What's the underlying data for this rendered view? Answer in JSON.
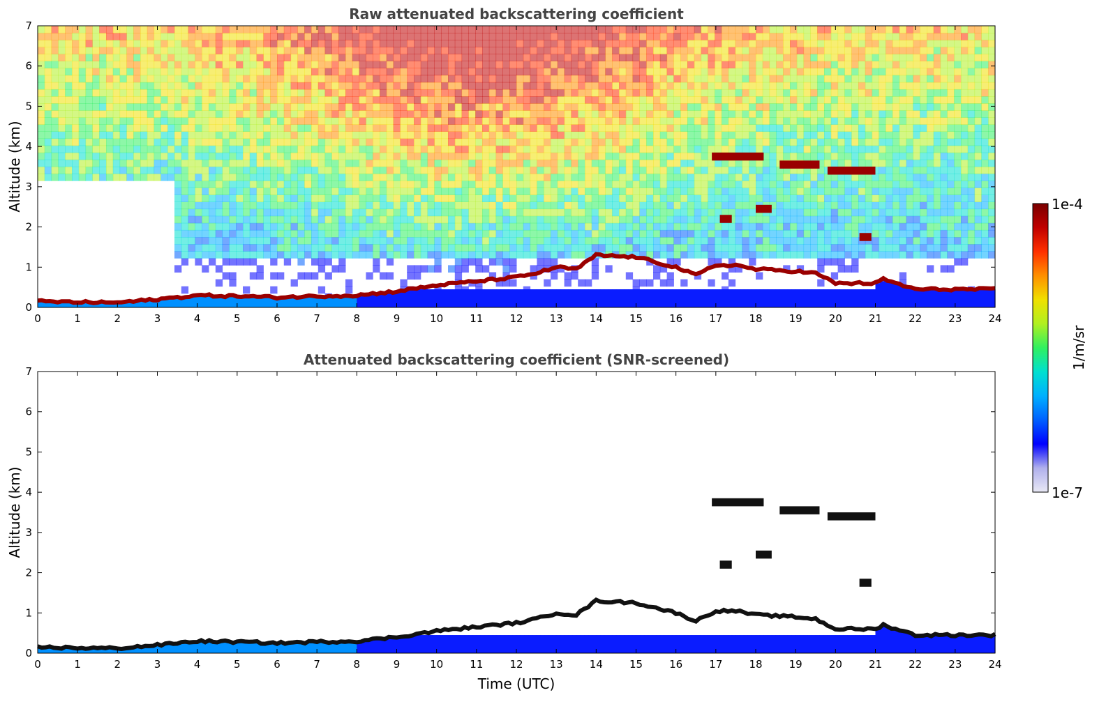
{
  "chart_data": [
    {
      "type": "heatmap",
      "title": "Raw attenuated backscattering coefficient",
      "xlabel": "",
      "ylabel": "Altitude (km)",
      "xlim": [
        0,
        24
      ],
      "ylim": [
        0,
        7
      ],
      "x_ticks": [
        "0",
        "1",
        "2",
        "3",
        "4",
        "5",
        "6",
        "7",
        "8",
        "9",
        "10",
        "11",
        "12",
        "13",
        "14",
        "15",
        "16",
        "17",
        "18",
        "19",
        "20",
        "21",
        "22",
        "23",
        "24"
      ],
      "y_ticks": [
        "0",
        "1",
        "2",
        "3",
        "4",
        "5",
        "6",
        "7"
      ],
      "boundary_layer_km": [
        [
          0,
          0.15
        ],
        [
          1,
          0.13
        ],
        [
          2,
          0.12
        ],
        [
          3,
          0.2
        ],
        [
          4,
          0.3
        ],
        [
          5,
          0.28
        ],
        [
          6,
          0.25
        ],
        [
          7,
          0.28
        ],
        [
          8,
          0.3
        ],
        [
          9,
          0.4
        ],
        [
          10,
          0.55
        ],
        [
          11,
          0.65
        ],
        [
          12,
          0.75
        ],
        [
          12.5,
          0.85
        ],
        [
          13,
          1.0
        ],
        [
          13.5,
          0.95
        ],
        [
          14,
          1.3
        ],
        [
          15,
          1.25
        ],
        [
          16,
          1.0
        ],
        [
          16.5,
          0.8
        ],
        [
          17,
          1.05
        ],
        [
          17.5,
          1.05
        ],
        [
          18,
          0.95
        ],
        [
          19,
          0.9
        ],
        [
          19.5,
          0.85
        ],
        [
          20,
          0.6
        ],
        [
          21,
          0.6
        ],
        [
          21.2,
          0.7
        ],
        [
          22,
          0.45
        ],
        [
          23,
          0.45
        ],
        [
          24,
          0.45
        ]
      ],
      "cloud_layers_km": [
        {
          "start": 16.9,
          "end": 18.2,
          "altitude": 3.75
        },
        {
          "start": 18.6,
          "end": 19.6,
          "altitude": 3.55
        },
        {
          "start": 19.8,
          "end": 21.0,
          "altitude": 3.4
        },
        {
          "start": 17.1,
          "end": 17.4,
          "altitude": 2.2
        },
        {
          "start": 18.0,
          "end": 18.4,
          "altitude": 2.45
        },
        {
          "start": 20.6,
          "end": 20.9,
          "altitude": 1.75
        }
      ],
      "noise_background": true
    },
    {
      "type": "heatmap",
      "title": "Attenuated backscattering coefficient (SNR-screened)",
      "xlabel": "Time (UTC)",
      "ylabel": "Altitude (km)",
      "xlim": [
        0,
        24
      ],
      "ylim": [
        0,
        7
      ],
      "x_ticks": [
        "0",
        "1",
        "2",
        "3",
        "4",
        "5",
        "6",
        "7",
        "8",
        "9",
        "10",
        "11",
        "12",
        "13",
        "14",
        "15",
        "16",
        "17",
        "18",
        "19",
        "20",
        "21",
        "22",
        "23",
        "24"
      ],
      "y_ticks": [
        "0",
        "1",
        "2",
        "3",
        "4",
        "5",
        "6",
        "7"
      ],
      "noise_background": false
    }
  ],
  "colorbar": {
    "label": "1/m/sr",
    "max_label": "1e-4",
    "min_label": "1e-7",
    "colormap": [
      "#e8e8f4",
      "#b0b0ec",
      "#0000ff",
      "#0060ff",
      "#00b0ff",
      "#00e0d0",
      "#30f060",
      "#b0f020",
      "#f0e000",
      "#ff9000",
      "#ff3000",
      "#c00000",
      "#7a0000"
    ]
  }
}
